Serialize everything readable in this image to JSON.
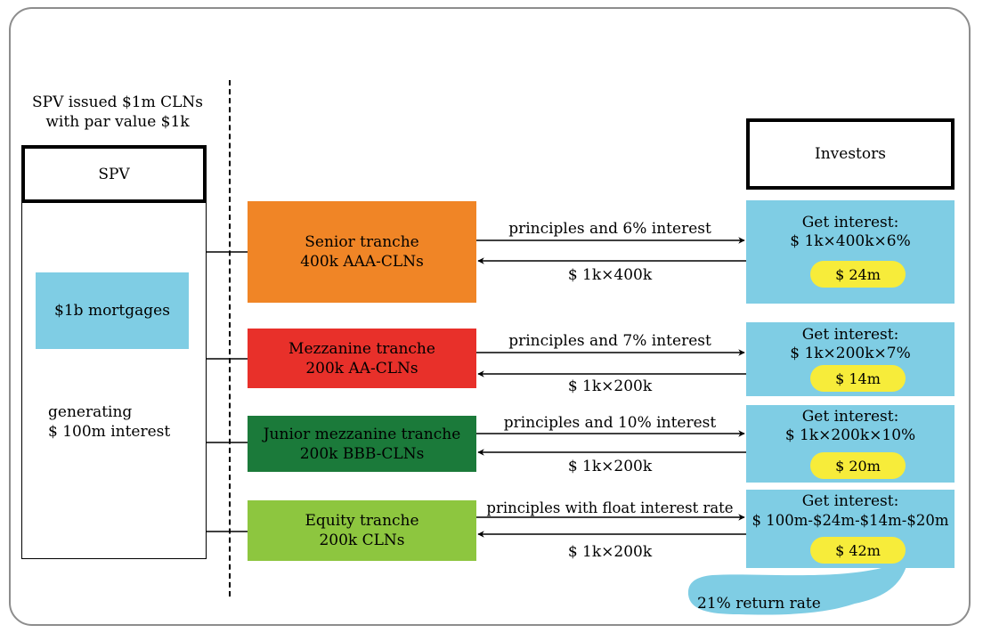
{
  "spv": {
    "heading_line1": "SPV issued $1m CLNs",
    "heading_line2": "with par value $1k",
    "label": "SPV",
    "mortgages": "$1b mortgages",
    "generating_line1": "generating",
    "generating_line2": "$ 100m interest"
  },
  "investors": {
    "label": "Investors"
  },
  "tranches": [
    {
      "name": "Senior tranche",
      "notes": "400k AAA-CLNs",
      "color": "#f08526",
      "flow_out": "principles and 6% interest",
      "flow_in": "$ 1k×400k",
      "get_interest": "Get interest:",
      "formula": "$ 1k×400k×6%",
      "amount": "$ 24m"
    },
    {
      "name": "Mezzanine  tranche",
      "notes": "200k AA-CLNs",
      "color": "#e8302a",
      "flow_out": "principles and 7% interest",
      "flow_in": "$ 1k×200k",
      "get_interest": "Get interest:",
      "formula": "$ 1k×200k×7%",
      "amount": "$ 14m"
    },
    {
      "name": "Junior mezzanine tranche",
      "notes": "200k BBB-CLNs",
      "color": "#1b7a3a",
      "flow_out": "principles and 10% interest",
      "flow_in": "$ 1k×200k",
      "get_interest": "Get interest:",
      "formula": "$ 1k×200k×10%",
      "amount": "$ 20m"
    },
    {
      "name": "Equity  tranche",
      "notes": "200k CLNs",
      "color": "#8dc63f",
      "flow_out": "principles with float interest rate",
      "flow_in": "$ 1k×200k",
      "get_interest": "Get interest:",
      "formula": "$ 100m-$24m-$14m-$20m",
      "amount": "$ 42m"
    }
  ],
  "return_rate": "21% return rate",
  "colors": {
    "callout": "#7fcde4",
    "investor_box": "#7fcde4",
    "pill": "#f7ec3a"
  }
}
